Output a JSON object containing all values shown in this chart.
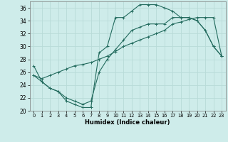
{
  "xlabel": "Humidex (Indice chaleur)",
  "bg_color": "#ceecea",
  "grid_color": "#b8dbd8",
  "line_color": "#236b5e",
  "xlim": [
    -0.5,
    23.5
  ],
  "ylim": [
    20,
    37
  ],
  "xticks": [
    0,
    1,
    2,
    3,
    4,
    5,
    6,
    7,
    8,
    9,
    10,
    11,
    12,
    13,
    14,
    15,
    16,
    17,
    18,
    19,
    20,
    21,
    22,
    23
  ],
  "yticks": [
    20,
    22,
    24,
    26,
    28,
    30,
    32,
    34,
    36
  ],
  "line1_x": [
    0,
    1,
    2,
    3,
    4,
    5,
    6,
    7,
    8,
    9,
    10,
    11,
    12,
    13,
    14,
    15,
    16,
    17,
    18,
    19,
    20,
    21,
    22,
    23
  ],
  "line1_y": [
    27,
    24.5,
    23.5,
    23.0,
    21.5,
    21.0,
    20.5,
    20.5,
    29.0,
    30.0,
    34.5,
    34.5,
    35.5,
    36.5,
    36.5,
    36.5,
    36.0,
    35.5,
    34.5,
    34.5,
    34.0,
    32.5,
    30.0,
    28.5
  ],
  "line2_x": [
    0,
    1,
    2,
    3,
    4,
    5,
    6,
    7,
    8,
    9,
    10,
    11,
    12,
    13,
    14,
    15,
    16,
    17,
    18,
    19,
    20,
    21,
    22,
    23
  ],
  "line2_y": [
    25.5,
    25.0,
    25.5,
    26.0,
    26.5,
    27.0,
    27.2,
    27.5,
    28.0,
    28.5,
    29.2,
    30.0,
    30.5,
    31.0,
    31.5,
    32.0,
    32.5,
    33.5,
    33.8,
    34.2,
    34.5,
    34.5,
    34.5,
    28.5
  ],
  "line3_x": [
    0,
    1,
    2,
    3,
    4,
    5,
    6,
    7,
    8,
    9,
    10,
    11,
    12,
    13,
    14,
    15,
    16,
    17,
    18,
    19,
    20,
    21,
    22,
    23
  ],
  "line3_y": [
    25.5,
    24.5,
    23.5,
    23.0,
    22.0,
    21.5,
    21.0,
    21.5,
    26.0,
    28.0,
    29.5,
    31.0,
    32.5,
    33.0,
    33.5,
    33.5,
    33.5,
    34.5,
    34.5,
    34.5,
    34.0,
    32.5,
    30.0,
    28.5
  ]
}
